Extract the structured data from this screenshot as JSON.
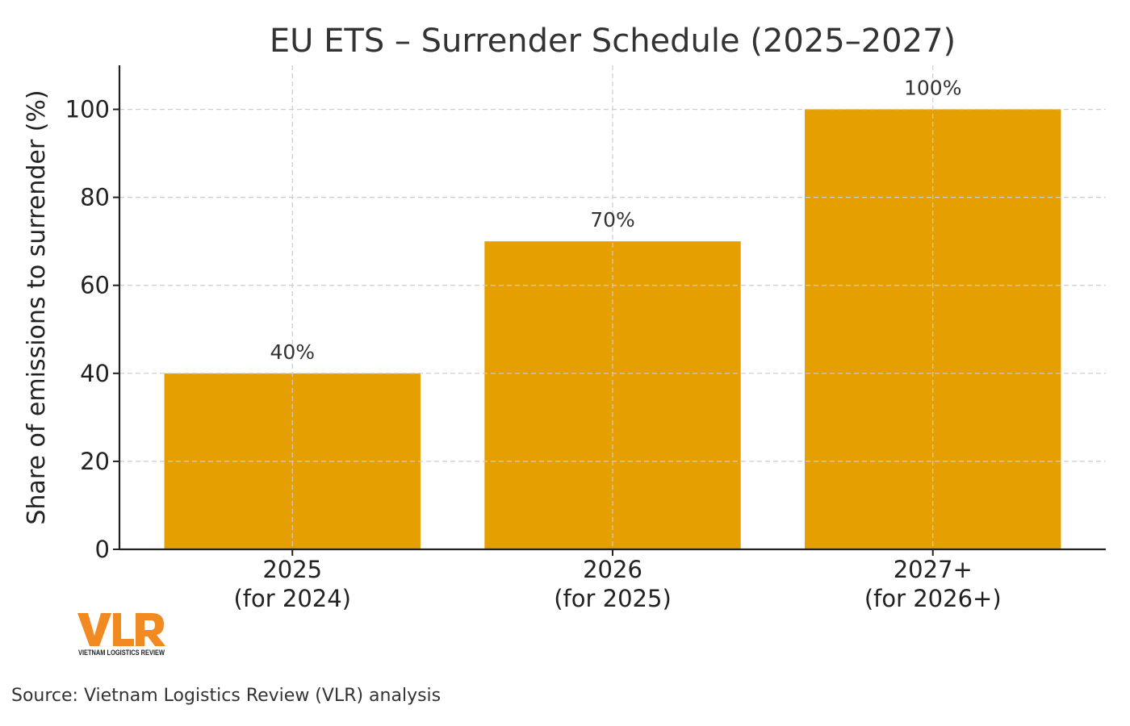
{
  "chart_data": {
    "type": "bar",
    "title": "EU ETS – Surrender Schedule (2025–2027)",
    "xlabel": "",
    "ylabel": "Share of emissions to surrender (%)",
    "categories": [
      [
        "2025",
        "(for 2024)"
      ],
      [
        "2026",
        "(for 2025)"
      ],
      [
        "2027+",
        "(for 2026+)"
      ]
    ],
    "values": [
      40,
      70,
      100
    ],
    "data_labels": [
      "40%",
      "70%",
      "100%"
    ],
    "ylim": [
      0,
      110
    ],
    "yticks": [
      0,
      20,
      40,
      60,
      80,
      100
    ],
    "grid": true,
    "bar_color": "#E69F00"
  },
  "logo": {
    "text": "VLR",
    "subtext": "VIETNAM LOGISTICS REVIEW",
    "color": "#F28A22"
  },
  "source": "Source: Vietnam Logistics Review (VLR) analysis"
}
